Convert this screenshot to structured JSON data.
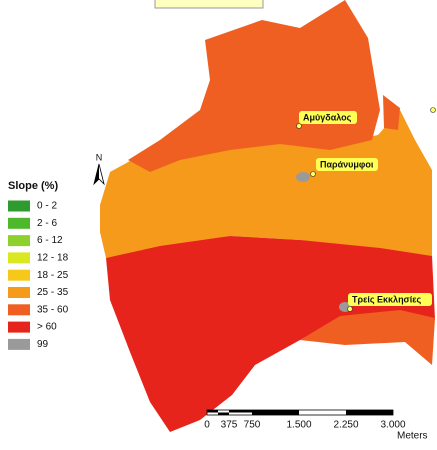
{
  "legend": {
    "title": "Slope (%)",
    "items": [
      {
        "label": "0 - 2",
        "color": "#2e9b2e"
      },
      {
        "label": "2 - 6",
        "color": "#4db82b"
      },
      {
        "label": "6 - 12",
        "color": "#8fd12c"
      },
      {
        "label": "12 - 18",
        "color": "#d9e821"
      },
      {
        "label": "18 - 25",
        "color": "#f6c81a"
      },
      {
        "label": "25 - 35",
        "color": "#f59a1b"
      },
      {
        "label": "35 - 60",
        "color": "#ef5f21"
      },
      {
        "label": "> 60",
        "color": "#e6241c"
      },
      {
        "label": "99",
        "color": "#9a9a9a"
      }
    ]
  },
  "places": [
    "Αμύγδαλος",
    "Παράνυμφοι",
    "Τρείς Εκκλησίες"
  ],
  "north": "N",
  "scale_bar": {
    "labels": [
      "0",
      "375",
      "750",
      "1.500",
      "2.250",
      "3.000"
    ],
    "unit": "Meters"
  }
}
